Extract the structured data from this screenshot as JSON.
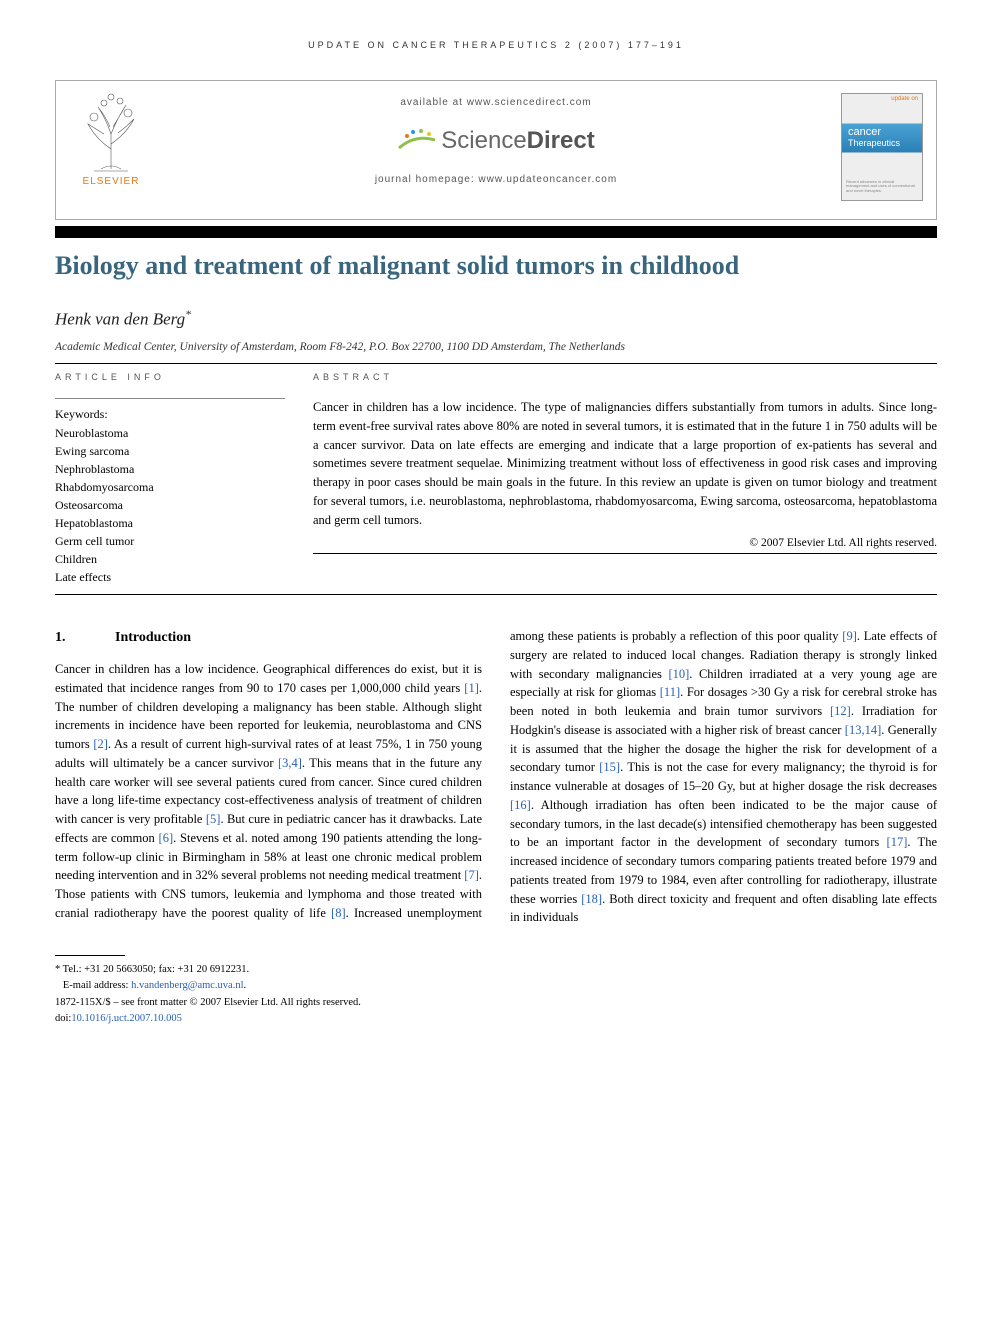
{
  "running_head": "UPDATE ON CANCER THERAPEUTICS 2 (2007) 177–191",
  "banner": {
    "publisher": "ELSEVIER",
    "available_at": "available at www.sciencedirect.com",
    "sd_brand_a": "Science",
    "sd_brand_b": "Direct",
    "journal_homepage": "journal homepage: www.updateoncancer.com",
    "cover_top": "update on",
    "cover_title_small": "cancer",
    "cover_title_big": "Therapeutics",
    "cover_small": "Recent advances in clinical management and uses of conventional and novel therapies"
  },
  "title": "Biology and treatment of malignant solid tumors in childhood",
  "author": "Henk van den Berg",
  "author_marker": "*",
  "affiliation": "Academic Medical Center, University of Amsterdam, Room F8-242, P.O. Box 22700, 1100 DD Amsterdam, The Netherlands",
  "info_head": "ARTICLE INFO",
  "abstract_head": "ABSTRACT",
  "keywords_label": "Keywords:",
  "keywords": [
    "Neuroblastoma",
    "Ewing sarcoma",
    "Nephroblastoma",
    "Rhabdomyosarcoma",
    "Osteosarcoma",
    "Hepatoblastoma",
    "Germ cell tumor",
    "Children",
    "Late effects"
  ],
  "abstract": "Cancer in children has a low incidence. The type of malignancies differs substantially from tumors in adults. Since long-term event-free survival rates above 80% are noted in several tumors, it is estimated that in the future 1 in 750 adults will be a cancer survivor. Data on late effects are emerging and indicate that a large proportion of ex-patients has several and sometimes severe treatment sequelae. Minimizing treatment without loss of effectiveness in good risk cases and improving therapy in poor cases should be main goals in the future. In this review an update is given on tumor biology and treatment for several tumors, i.e. neuroblastoma, nephroblastoma, rhabdomyosarcoma, Ewing sarcoma, osteosarcoma, hepatoblastoma and germ cell tumors.",
  "copyright": "© 2007 Elsevier Ltd. All rights reserved.",
  "section1_num": "1.",
  "section1_title": "Introduction",
  "body_html": "Cancer in children has a low incidence. Geographical differences do exist, but it is estimated that incidence ranges from 90 to 170 cases per 1,000,000 child years <span class='ref'>[1]</span>. The number of children developing a malignancy has been stable. Although slight increments in incidence have been reported for leukemia, neuroblastoma and CNS tumors <span class='ref'>[2]</span>. As a result of current high-survival rates of at least 75%, 1 in 750 young adults will ultimately be a cancer survivor <span class='ref'>[3,4]</span>. This means that in the future any health care worker will see several patients cured from cancer. Since cured children have a long life-time expectancy cost-effectiveness analysis of treatment of children with cancer is very profitable <span class='ref'>[5]</span>. But cure in pediatric cancer has it drawbacks. Late effects are common <span class='ref'>[6]</span>. Stevens et al. noted among 190 patients attending the long-term follow-up clinic in Birmingham in 58% at least one chronic medical problem needing intervention and in 32% several problems not needing medical treatment <span class='ref'>[7]</span>. Those patients with CNS tumors, leukemia and lymphoma and those treated with cranial radiotherapy have the poorest quality of life <span class='ref'>[8]</span>. Increased unemployment among these patients is probably a reflection of this poor quality <span class='ref'>[9]</span>. Late effects of surgery are related to induced local changes. Radiation therapy is strongly linked with secondary malignancies <span class='ref'>[10]</span>. Children irradiated at a very young age are especially at risk for gliomas <span class='ref'>[11]</span>. For dosages &gt;30 Gy a risk for cerebral stroke has been noted in both leukemia and brain tumor survivors <span class='ref'>[12]</span>. Irradiation for Hodgkin's disease is associated with a higher risk of breast cancer <span class='ref'>[13,14]</span>. Generally it is assumed that the higher the dosage the higher the risk for development of a secondary tumor <span class='ref'>[15]</span>. This is not the case for every malignancy; the thyroid is for instance vulnerable at dosages of 15–20 Gy, but at higher dosage the risk decreases <span class='ref'>[16]</span>. Although irradiation has often been indicated to be the major cause of secondary tumors, in the last decade(s) intensified chemotherapy has been suggested to be an important factor in the development of secondary tumors <span class='ref'>[17]</span>. The increased incidence of secondary tumors comparing patients treated before 1979 and patients treated from 1979 to 1984, even after controlling for radiotherapy, illustrate these worries <span class='ref'>[18]</span>. Both direct toxicity and frequent and often disabling late effects in individuals",
  "footnotes": {
    "corr": "* Tel.: +31 20 5663050; fax: +31 20 6912231.",
    "email_label": "E-mail address:",
    "email": "h.vandenberg@amc.uva.nl",
    "issn": "1872-115X/$ – see front matter © 2007 Elsevier Ltd. All rights reserved.",
    "doi": "doi:10.1016/j.uct.2007.10.005"
  },
  "colors": {
    "title": "#39667f",
    "ref": "#2861b3",
    "elsevier": "#e67817"
  }
}
